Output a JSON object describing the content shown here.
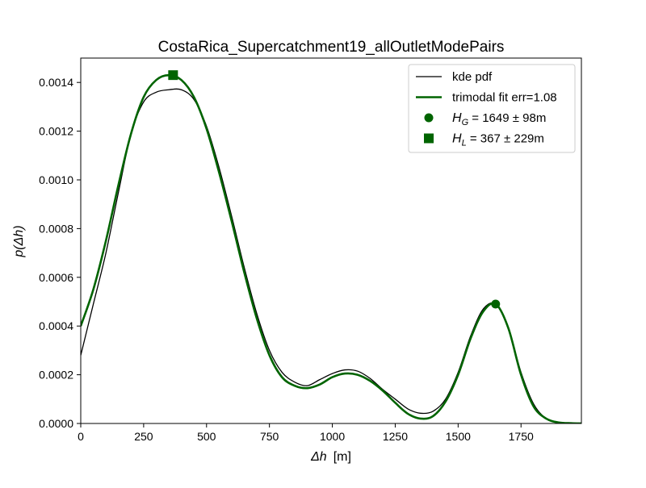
{
  "chart_data": {
    "type": "line",
    "title": "CostaRica_Supercatchment19_allOutletModePairs",
    "xlabel_symbol": "Δh",
    "xlabel_unit": "[m]",
    "ylabel_symbol": "p(Δh)",
    "xlim": [
      0,
      1990
    ],
    "ylim": [
      0,
      0.0015
    ],
    "xticks": [
      0,
      250,
      500,
      750,
      1000,
      1250,
      1500,
      1750
    ],
    "yticks": [
      0.0,
      0.0002,
      0.0004,
      0.0006,
      0.0008,
      0.001,
      0.0012,
      0.0014
    ],
    "xtick_labels": [
      "0",
      "250",
      "500",
      "750",
      "1000",
      "1250",
      "1500",
      "1750"
    ],
    "ytick_labels": [
      "0.0000",
      "0.0002",
      "0.0004",
      "0.0006",
      "0.0008",
      "0.0010",
      "0.0012",
      "0.0014"
    ],
    "grid": false,
    "legend_position": "top-right",
    "series": [
      {
        "name": "kde pdf",
        "color": "#000000",
        "x": [
          0,
          50,
          100,
          150,
          200,
          250,
          300,
          350,
          400,
          450,
          500,
          550,
          600,
          650,
          700,
          750,
          800,
          850,
          900,
          950,
          1000,
          1050,
          1100,
          1150,
          1200,
          1250,
          1300,
          1350,
          1400,
          1450,
          1500,
          1550,
          1600,
          1650,
          1700,
          1750,
          1800,
          1850,
          1900,
          1950,
          1990
        ],
        "y": [
          0.00028,
          0.00049,
          0.0007,
          0.00095,
          0.00119,
          0.00132,
          0.00136,
          0.00137,
          0.00137,
          0.00133,
          0.00122,
          0.00105,
          0.00085,
          0.00064,
          0.00045,
          0.0003,
          0.00021,
          0.00017,
          0.000155,
          0.00018,
          0.000205,
          0.00022,
          0.000215,
          0.000185,
          0.00014,
          0.0001,
          6e-05,
          4.2e-05,
          5e-05,
          0.0001,
          0.00021,
          0.00036,
          0.00047,
          0.00049,
          0.00039,
          0.00021,
          8e-05,
          2e-05,
          5e-06,
          1e-06,
          0.0
        ]
      },
      {
        "name": "trimodal fit err=1.08",
        "color": "#006400",
        "x": [
          0,
          50,
          100,
          150,
          200,
          250,
          300,
          350,
          400,
          450,
          500,
          550,
          600,
          650,
          700,
          750,
          800,
          850,
          900,
          950,
          1000,
          1050,
          1100,
          1150,
          1200,
          1250,
          1300,
          1350,
          1400,
          1450,
          1500,
          1550,
          1600,
          1650,
          1700,
          1750,
          1800,
          1850,
          1900,
          1950,
          1990
        ],
        "y": [
          0.0004,
          0.00055,
          0.00075,
          0.00098,
          0.00119,
          0.00134,
          0.00141,
          0.00143,
          0.00141,
          0.00134,
          0.00121,
          0.00103,
          0.00083,
          0.00062,
          0.00043,
          0.00028,
          0.00019,
          0.000155,
          0.000145,
          0.00016,
          0.00019,
          0.000205,
          0.0002,
          0.000175,
          0.000135,
          8.5e-05,
          4e-05,
          2e-05,
          3e-05,
          9e-05,
          0.0002,
          0.00035,
          0.00046,
          0.00049,
          0.00039,
          0.0002,
          7e-05,
          2e-05,
          4e-06,
          1e-06,
          0.0
        ]
      }
    ],
    "markers": [
      {
        "name": "H_G",
        "shape": "circle",
        "x": 1649,
        "y": 0.00049,
        "color": "#006400"
      },
      {
        "name": "H_L",
        "shape": "square",
        "x": 367,
        "y": 0.00143,
        "color": "#006400"
      }
    ],
    "legend": {
      "entries": [
        {
          "kind": "line",
          "color": "#000000",
          "width": 1.3,
          "label": "kde pdf"
        },
        {
          "kind": "line",
          "color": "#006400",
          "width": 2.6,
          "label": "trimodal fit err=1.08"
        },
        {
          "kind": "circle",
          "color": "#006400",
          "sym": "H",
          "sub": "G",
          "text": " = 1649 ± 98m"
        },
        {
          "kind": "square",
          "color": "#006400",
          "sym": "H",
          "sub": "L",
          "text": " = 367 ± 229m"
        }
      ]
    }
  }
}
